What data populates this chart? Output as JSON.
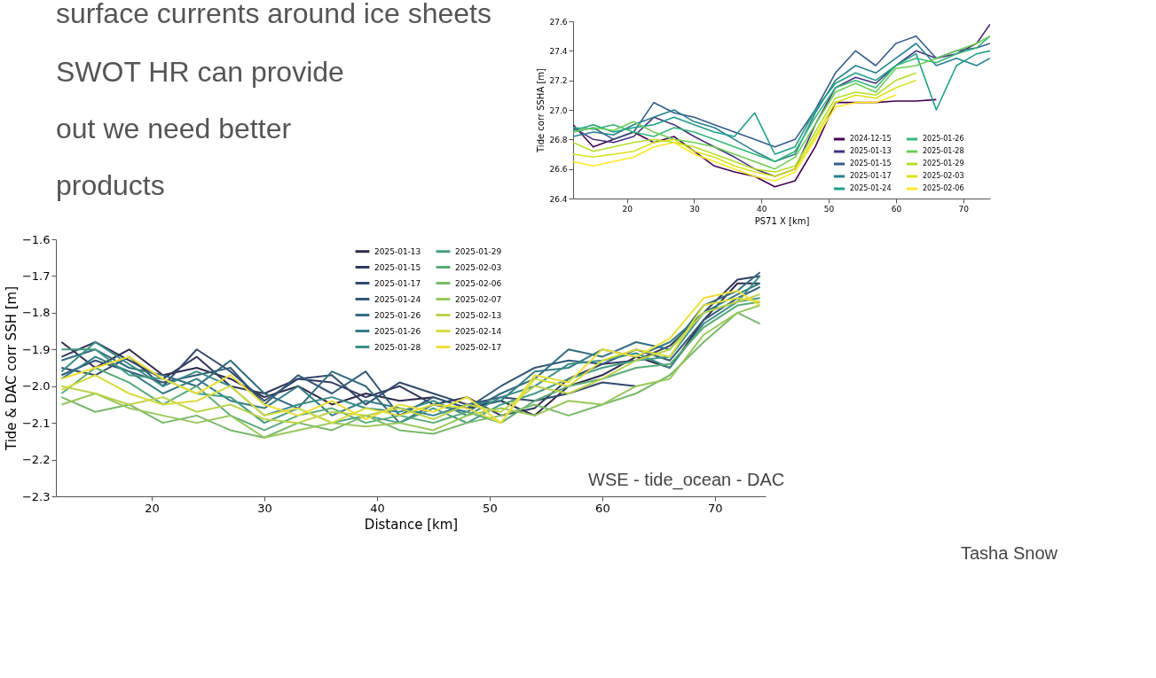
{
  "chart_data": [
    {
      "type": "line",
      "ylabel": "Tide corr SSHA [m]",
      "xlabel": "PS71 X [km]",
      "xlim": [
        12,
        74
      ],
      "xticks": [
        20,
        30,
        40,
        50,
        60,
        70
      ],
      "ylim": [
        26.4,
        27.6
      ],
      "yticks": [
        26.4,
        26.6,
        26.8,
        {
          "value": 27.0,
          "label": "27.0"
        },
        27.2,
        27.4,
        27.6
      ],
      "grid": false,
      "legend": "bottom right",
      "marker": "none",
      "line_style": "solid",
      "annotations": [
        "surface currents around ice sheets",
        "SWOT HR can provide",
        "out we need better",
        "products"
      ],
      "x": [
        12,
        15,
        18,
        21,
        24,
        27,
        30,
        33,
        36,
        39,
        42,
        45,
        48,
        51,
        54,
        57,
        60,
        63,
        66,
        69,
        72,
        74
      ],
      "series": [
        {
          "name": "2024-12-15",
          "color": "#440154",
          "values": [
            26.9,
            26.75,
            26.8,
            26.85,
            26.78,
            26.82,
            26.72,
            26.62,
            26.58,
            26.55,
            26.48,
            26.52,
            26.75,
            27.05,
            27.05,
            27.05,
            27.06,
            27.06,
            27.07,
            null,
            null,
            null
          ]
        },
        {
          "name": "2025-01-13",
          "color": "#46327e",
          "values": [
            26.88,
            26.8,
            26.78,
            26.82,
            26.95,
            26.9,
            26.82,
            26.75,
            26.68,
            26.6,
            26.55,
            26.6,
            26.9,
            27.15,
            27.22,
            27.18,
            27.3,
            27.4,
            27.35,
            27.38,
            27.45,
            27.58
          ]
        },
        {
          "name": "2025-01-15",
          "color": "#365c8d",
          "values": [
            26.85,
            26.88,
            26.8,
            26.85,
            27.05,
            26.98,
            26.95,
            26.9,
            26.85,
            26.8,
            26.75,
            26.8,
            27.0,
            27.25,
            27.4,
            27.3,
            27.45,
            27.5,
            27.35,
            27.4,
            27.42,
            27.45
          ]
        },
        {
          "name": "2025-01-17",
          "color": "#277f8e",
          "values": [
            26.82,
            26.85,
            26.83,
            26.9,
            26.95,
            27.0,
            26.92,
            26.88,
            26.8,
            26.72,
            26.65,
            26.7,
            26.98,
            27.2,
            27.3,
            27.25,
            27.35,
            27.45,
            27.3,
            27.35,
            27.3,
            27.35
          ]
        },
        {
          "name": "2025-01-24",
          "color": "#1f9e89",
          "values": [
            26.86,
            26.9,
            26.85,
            26.88,
            26.9,
            26.95,
            26.9,
            26.85,
            26.82,
            26.98,
            26.7,
            26.75,
            27.0,
            27.18,
            27.25,
            27.2,
            27.3,
            27.38,
            27.0,
            27.3,
            27.38,
            27.4
          ]
        },
        {
          "name": "2025-01-26",
          "color": "#35b779",
          "values": [
            26.88,
            26.87,
            26.9,
            26.85,
            26.82,
            26.88,
            26.85,
            26.8,
            26.75,
            26.7,
            26.65,
            26.72,
            26.95,
            27.15,
            27.2,
            27.15,
            27.3,
            27.35,
            27.32,
            27.38,
            27.42,
            27.5
          ]
        },
        {
          "name": "2025-01-28",
          "color": "#6ece58",
          "values": [
            26.85,
            26.88,
            26.86,
            26.92,
            26.85,
            26.8,
            26.78,
            26.75,
            26.7,
            26.65,
            26.6,
            26.68,
            26.9,
            27.12,
            27.18,
            27.12,
            27.28,
            27.3,
            27.35,
            27.4,
            27.45,
            27.5
          ]
        },
        {
          "name": "2025-01-29",
          "color": "#b5de2b",
          "values": [
            26.78,
            26.72,
            26.75,
            26.78,
            26.8,
            26.78,
            26.75,
            26.7,
            26.65,
            26.6,
            26.58,
            26.62,
            26.85,
            27.08,
            27.12,
            27.1,
            27.2,
            27.25,
            null,
            null,
            null,
            null
          ]
        },
        {
          "name": "2025-02-03",
          "color": "#d8e219",
          "values": [
            26.7,
            26.68,
            26.7,
            26.72,
            26.78,
            26.8,
            26.72,
            26.68,
            26.62,
            26.58,
            26.55,
            26.6,
            26.82,
            27.05,
            27.1,
            27.08,
            27.15,
            27.2,
            null,
            null,
            null,
            null
          ]
        },
        {
          "name": "2025-02-06",
          "color": "#fde725",
          "values": [
            26.65,
            26.62,
            26.65,
            26.68,
            26.75,
            26.78,
            26.7,
            26.65,
            26.6,
            26.55,
            26.52,
            26.58,
            26.8,
            27.02,
            27.05,
            27.05,
            27.1,
            null,
            null,
            null,
            null,
            null
          ]
        }
      ]
    },
    {
      "type": "line",
      "ylabel": "Tide & DAC corr SSH [m]",
      "xlabel": "Distance [km]",
      "xlim": [
        11.5,
        74.5
      ],
      "xticks": [
        20,
        30,
        40,
        50,
        60,
        70
      ],
      "ylim": [
        -2.3,
        -1.6
      ],
      "yticks": [
        -2.3,
        -2.2,
        -2.1,
        {
          "value": -2.0,
          "label": "−2.0"
        },
        -1.9,
        -1.8,
        -1.7,
        -1.6
      ],
      "grid": false,
      "legend": "top",
      "marker": "none",
      "line_style": "solid",
      "annotations": [
        "WSE - tide_ocean - DAC",
        "Tasha Snow"
      ],
      "x": [
        12,
        15,
        18,
        21,
        24,
        27,
        30,
        33,
        36,
        39,
        42,
        45,
        48,
        51,
        54,
        57,
        60,
        63,
        66,
        69,
        72,
        74
      ],
      "series": [
        {
          "name": "2025-01-13",
          "color": "#2f2a4a",
          "values": [
            -1.88,
            -1.95,
            -1.9,
            -1.97,
            -1.95,
            -1.98,
            -2.03,
            -2.0,
            -2.05,
            -2.02,
            -2.04,
            -2.03,
            -2.06,
            -2.04,
            -2.08,
            -2.0,
            -1.97,
            -1.92,
            -1.95,
            -1.82,
            -1.72,
            -1.72
          ]
        },
        {
          "name": "2025-01-15",
          "color": "#323a5c",
          "values": [
            -1.92,
            -1.88,
            -1.93,
            -1.98,
            -1.92,
            -2.0,
            -2.02,
            -1.98,
            -1.99,
            -2.03,
            -2.0,
            -2.05,
            -2.03,
            -2.08,
            -2.06,
            -1.98,
            -1.94,
            -1.93,
            -1.89,
            -1.8,
            -1.71,
            -1.7
          ]
        },
        {
          "name": "2025-01-17",
          "color": "#33496b",
          "values": [
            -1.95,
            -1.97,
            -1.92,
            -2.0,
            -1.9,
            -1.96,
            -2.04,
            -1.98,
            -1.97,
            -2.05,
            -1.99,
            -2.02,
            -2.05,
            -2.03,
            -2.04,
            -2.02,
            -1.99,
            -2.0,
            null,
            null,
            null,
            null
          ]
        },
        {
          "name": "2025-01-24",
          "color": "#335a77",
          "values": [
            -1.97,
            -1.93,
            -1.96,
            -1.99,
            -1.97,
            -1.95,
            -2.05,
            -1.97,
            -2.02,
            -1.96,
            -2.08,
            -2.03,
            -2.06,
            -2.0,
            -1.95,
            -1.93,
            -1.94,
            -1.9,
            -1.93,
            -1.82,
            -1.76,
            -1.73
          ]
        },
        {
          "name": "2025-01-26",
          "color": "#336b80",
          "values": [
            -1.93,
            -1.9,
            -1.95,
            -1.97,
            -2.0,
            -1.93,
            -2.02,
            -2.06,
            -1.96,
            -2.0,
            -2.1,
            -2.05,
            -2.07,
            -2.02,
            -1.98,
            -1.9,
            -1.92,
            -1.88,
            -1.9,
            -1.78,
            -1.74,
            -1.69
          ]
        },
        {
          "name": "2025-01-26",
          "color": "#347c86",
          "values": [
            -1.98,
            -1.92,
            -1.96,
            -2.02,
            -1.98,
            -2.04,
            -2.06,
            -2.0,
            -2.08,
            -2.04,
            -2.06,
            -2.08,
            -2.05,
            -2.04,
            -1.96,
            -1.95,
            -1.9,
            -1.92,
            -1.88,
            -1.8,
            -1.75,
            -1.72
          ]
        },
        {
          "name": "2025-01-28",
          "color": "#3a8d87",
          "values": [
            -1.96,
            -1.88,
            -1.94,
            -2.0,
            -1.96,
            -2.0,
            -2.08,
            -2.05,
            -2.03,
            -2.06,
            -2.07,
            -2.04,
            -2.08,
            -2.03,
            -2.0,
            -1.94,
            -1.93,
            -1.91,
            -1.95,
            -1.83,
            -1.77,
            -1.7
          ]
        },
        {
          "name": "2025-01-29",
          "color": "#459c82",
          "values": [
            -1.9,
            -1.9,
            -1.97,
            -1.98,
            -2.02,
            -2.03,
            -2.1,
            -2.06,
            -2.1,
            -2.08,
            -2.1,
            -2.06,
            -2.1,
            -2.05,
            -2.02,
            -1.98,
            -1.95,
            -1.93,
            -1.92,
            -1.8,
            -1.77,
            -1.76
          ]
        },
        {
          "name": "2025-02-03",
          "color": "#5aab78",
          "values": [
            -2.02,
            -1.95,
            -1.99,
            -2.05,
            -2.0,
            -2.08,
            -2.12,
            -2.08,
            -2.06,
            -2.1,
            -2.08,
            -2.1,
            -2.07,
            -2.1,
            -2.04,
            -2.0,
            -1.98,
            -1.95,
            -1.94,
            -1.84,
            -1.78,
            -1.77
          ]
        },
        {
          "name": "2025-02-06",
          "color": "#78b96a",
          "values": [
            -2.03,
            -2.07,
            -2.05,
            -2.1,
            -2.08,
            -2.12,
            -2.14,
            -2.1,
            -2.12,
            -2.08,
            -2.12,
            -2.13,
            -2.1,
            -2.08,
            -2.05,
            -2.08,
            -2.05,
            -2.02,
            -1.97,
            -1.88,
            -1.8,
            -1.83
          ]
        },
        {
          "name": "2025-02-07",
          "color": "#99c75c",
          "values": [
            -2.05,
            -2.02,
            -2.06,
            -2.08,
            -2.1,
            -2.08,
            -2.14,
            -2.12,
            -2.1,
            -2.11,
            -2.1,
            -2.12,
            -2.08,
            -2.06,
            -2.08,
            -2.04,
            -2.05,
            -2.0,
            -1.98,
            -1.86,
            -1.8,
            -1.78
          ]
        },
        {
          "name": "2025-02-13",
          "color": "#bdd24b",
          "values": [
            -2.0,
            -2.02,
            -2.05,
            -2.03,
            -2.07,
            -2.05,
            -2.09,
            -2.1,
            -2.07,
            -2.08,
            -2.06,
            -2.09,
            -2.05,
            -2.07,
            -2.0,
            -2.02,
            -1.98,
            -1.93,
            -1.9,
            -1.8,
            -1.77,
            -1.75
          ]
        },
        {
          "name": "2025-02-14",
          "color": "#d8dc3f",
          "values": [
            -2.01,
            -1.97,
            -2.02,
            -2.05,
            -2.04,
            -2.0,
            -2.08,
            -2.06,
            -2.1,
            -2.06,
            -2.08,
            -2.05,
            -2.06,
            -2.1,
            -1.98,
            -2.0,
            -1.93,
            -1.9,
            -1.92,
            -1.78,
            -1.76,
            -1.77
          ]
        },
        {
          "name": "2025-02-17",
          "color": "#ecdf3a",
          "values": [
            -1.98,
            -1.95,
            -1.92,
            -1.98,
            -2.02,
            -1.97,
            -2.05,
            -2.08,
            -2.04,
            -2.09,
            -2.05,
            -2.07,
            -2.03,
            -2.1,
            -1.97,
            -1.99,
            -1.9,
            -1.92,
            -1.87,
            -1.76,
            -1.74,
            -1.78
          ]
        }
      ]
    }
  ]
}
